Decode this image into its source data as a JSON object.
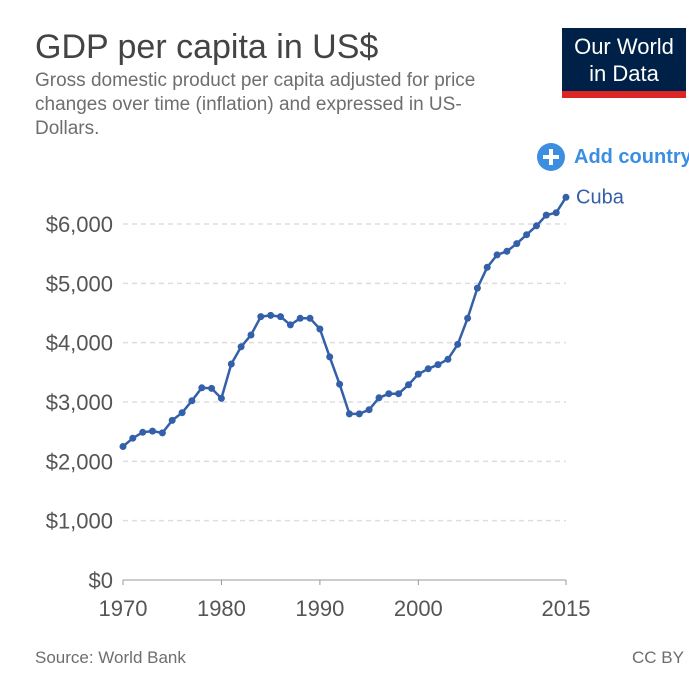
{
  "header": {
    "title": "GDP per capita in US$",
    "subtitle": "Gross domestic product per capita adjusted for price changes over time (inflation) and expressed in US-Dollars.",
    "logo_line1": "Our World",
    "logo_line2": "in Data",
    "add_country_label": "Add country"
  },
  "footer": {
    "source": "Source: World Bank",
    "license": "CC BY"
  },
  "colors": {
    "series": "#3360a9",
    "logo_bg": "#002147",
    "logo_bar": "#dc2626",
    "accent": "#3b8ee0",
    "grid": "#dddddd",
    "axis_text": "#555555"
  },
  "chart_data": {
    "type": "line",
    "title": "GDP per capita in US$",
    "xlabel": "",
    "ylabel": "",
    "xlim": [
      1970,
      2015
    ],
    "ylim": [
      0,
      6000
    ],
    "x_ticks": [
      1970,
      1980,
      1990,
      2000,
      2015
    ],
    "x_tick_labels": [
      "1970",
      "1980",
      "1990",
      "2000",
      "2015"
    ],
    "y_ticks": [
      0,
      1000,
      2000,
      3000,
      4000,
      5000,
      6000
    ],
    "y_tick_labels": [
      "$0",
      "$1,000",
      "$2,000",
      "$3,000",
      "$4,000",
      "$5,000",
      "$6,000"
    ],
    "grid": true,
    "legend": "end-label",
    "series": [
      {
        "name": "Cuba",
        "x": [
          1970,
          1971,
          1972,
          1973,
          1974,
          1975,
          1976,
          1977,
          1978,
          1979,
          1980,
          1981,
          1982,
          1983,
          1984,
          1985,
          1986,
          1987,
          1988,
          1989,
          1990,
          1991,
          1992,
          1993,
          1994,
          1995,
          1996,
          1997,
          1998,
          1999,
          2000,
          2001,
          2002,
          2003,
          2004,
          2005,
          2006,
          2007,
          2008,
          2009,
          2010,
          2011,
          2012,
          2013,
          2014,
          2015
        ],
        "values": [
          2250,
          2390,
          2490,
          2510,
          2480,
          2690,
          2820,
          3020,
          3240,
          3230,
          3060,
          3640,
          3930,
          4130,
          4440,
          4460,
          4440,
          4300,
          4410,
          4410,
          4230,
          3760,
          3300,
          2800,
          2800,
          2870,
          3070,
          3140,
          3140,
          3290,
          3470,
          3560,
          3630,
          3720,
          3970,
          4410,
          4920,
          5270,
          5480,
          5540,
          5670,
          5820,
          5970,
          6150,
          6190,
          6450
        ]
      }
    ]
  }
}
